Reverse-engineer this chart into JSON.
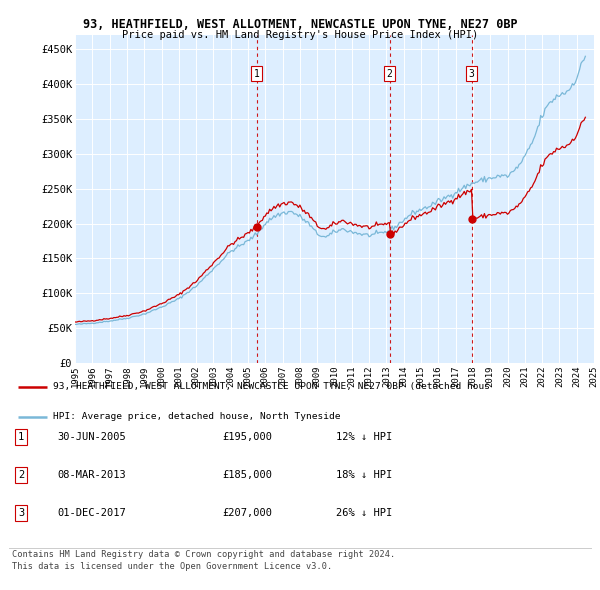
{
  "title1": "93, HEATHFIELD, WEST ALLOTMENT, NEWCASTLE UPON TYNE, NE27 0BP",
  "title2": "Price paid vs. HM Land Registry's House Price Index (HPI)",
  "bg_color": "#ddeeff",
  "hpi_color": "#7ab8d8",
  "price_color": "#cc0000",
  "vline_color": "#cc0000",
  "ylim": [
    0,
    470000
  ],
  "yticks": [
    0,
    50000,
    100000,
    150000,
    200000,
    250000,
    300000,
    350000,
    400000,
    450000
  ],
  "ytick_labels": [
    "£0",
    "£50K",
    "£100K",
    "£150K",
    "£200K",
    "£250K",
    "£300K",
    "£350K",
    "£400K",
    "£450K"
  ],
  "sale_dates_decimal": [
    2005.496,
    2013.186,
    2017.92
  ],
  "sale_prices": [
    195000,
    185000,
    207000
  ],
  "sale_labels": [
    "1",
    "2",
    "3"
  ],
  "legend_label1": "93, HEATHFIELD, WEST ALLOTMENT, NEWCASTLE UPON TYNE, NE27 0BP (detached hous",
  "legend_label2": "HPI: Average price, detached house, North Tyneside",
  "table_data": [
    [
      "1",
      "30-JUN-2005",
      "£195,000",
      "12% ↓ HPI"
    ],
    [
      "2",
      "08-MAR-2013",
      "£185,000",
      "18% ↓ HPI"
    ],
    [
      "3",
      "01-DEC-2017",
      "£207,000",
      "26% ↓ HPI"
    ]
  ],
  "footnote1": "Contains HM Land Registry data © Crown copyright and database right 2024.",
  "footnote2": "This data is licensed under the Open Government Licence v3.0."
}
